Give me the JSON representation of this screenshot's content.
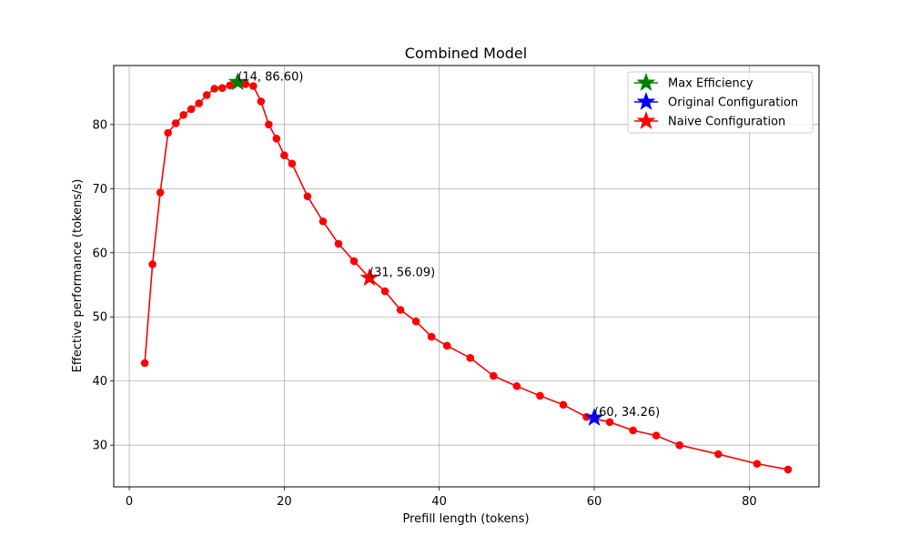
{
  "chart_data": {
    "type": "line",
    "title": "Combined Model",
    "xlabel": "Prefill length (tokens)",
    "ylabel": "Effective performance (tokens/s)",
    "xlim": [
      -2,
      89
    ],
    "ylim": [
      23.5,
      89.2
    ],
    "xticks": [
      0,
      20,
      40,
      60,
      80
    ],
    "yticks": [
      30,
      40,
      50,
      60,
      70,
      80
    ],
    "grid": true,
    "legend_position": "top-right",
    "series": [
      {
        "color": "#ff0000",
        "marker": "circle",
        "x": [
          2,
          3,
          4,
          5,
          6,
          7,
          8,
          9,
          10,
          11,
          12,
          13,
          14,
          15,
          16,
          17,
          18,
          19,
          20,
          21,
          23,
          25,
          27,
          29,
          31,
          33,
          35,
          37,
          39,
          41,
          44,
          47,
          50,
          53,
          56,
          59,
          62,
          65,
          68,
          71,
          76,
          81,
          85
        ],
        "y": [
          42.8,
          58.2,
          69.4,
          78.7,
          80.2,
          81.5,
          82.4,
          83.3,
          84.6,
          85.6,
          85.7,
          86.1,
          86.6,
          86.3,
          86.0,
          83.6,
          80.0,
          77.8,
          75.2,
          73.9,
          68.8,
          64.9,
          61.4,
          58.7,
          56.09,
          54.0,
          51.1,
          49.3,
          46.9,
          45.5,
          43.6,
          40.8,
          39.2,
          37.7,
          36.3,
          34.4,
          33.6,
          32.3,
          31.5,
          30.0,
          28.6,
          27.1,
          26.2
        ]
      }
    ],
    "highlights": [
      {
        "name": "Max Efficiency",
        "x": 14,
        "y": 86.6,
        "color": "#008000",
        "label": "(14, 86.60)"
      },
      {
        "name": "Original Configuration",
        "x": 60,
        "y": 34.26,
        "color": "#0000ff",
        "label": "(60, 34.26)"
      },
      {
        "name": "Naive Configuration",
        "x": 31,
        "y": 56.09,
        "color": "#ff0000",
        "label": "(31, 56.09)"
      }
    ]
  }
}
